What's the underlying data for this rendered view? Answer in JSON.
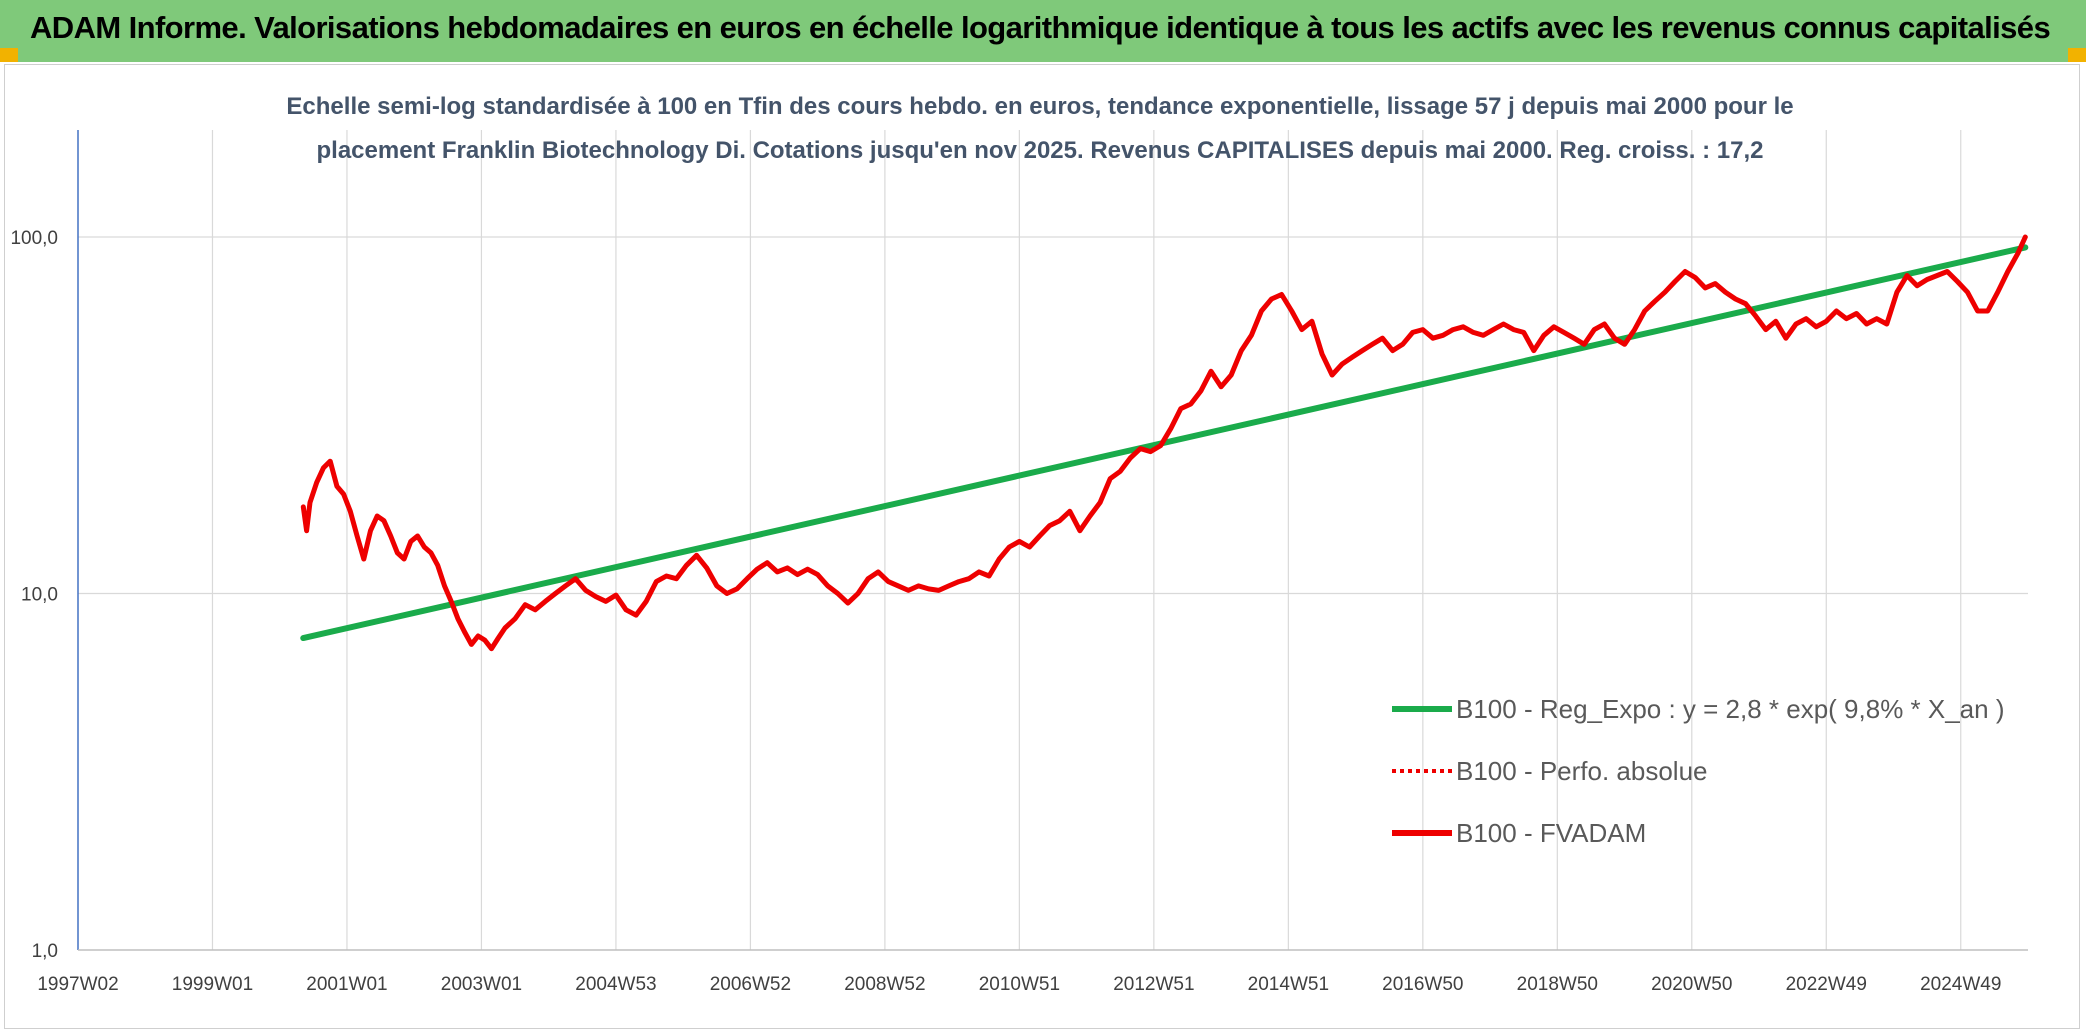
{
  "header": {
    "title": "ADAM Informe. Valorisations hebdomadaires en euros en échelle logarithmique identique à tous les actifs avec les revenus connus capitalisés"
  },
  "colors": {
    "banner": "#7fc97a",
    "regression": "#1aab4b",
    "fvadam": "#ee0000",
    "perfo": "#ee0000",
    "grid": "#d9d9d9"
  },
  "chart_data": {
    "type": "line",
    "subtitle_lines": [
      "Echelle semi-log standardisée à 100 en Tfin des cours hebdo. en euros, tendance exponentielle, lissage 57 j depuis mai 2000 pour le",
      "placement Franklin Biotechnology Di. Cotations jusqu'en nov 2025. Revenus CAPITALISES depuis mai 2000. Reg. croiss. : 17,2"
    ],
    "y_scale": "log",
    "ylim": [
      1,
      100
    ],
    "y_ticks": [
      "100,0",
      "10,0",
      "1,0"
    ],
    "x_range": [
      1997.0,
      2026.0
    ],
    "x_ticks": [
      {
        "label": "1997W02",
        "t": 1997.0
      },
      {
        "label": "1999W01",
        "t": 1999.0
      },
      {
        "label": "2001W01",
        "t": 2001.0
      },
      {
        "label": "2003W01",
        "t": 2003.0
      },
      {
        "label": "2004W53",
        "t": 2005.0
      },
      {
        "label": "2006W52",
        "t": 2007.0
      },
      {
        "label": "2008W52",
        "t": 2009.0
      },
      {
        "label": "2010W51",
        "t": 2011.0
      },
      {
        "label": "2012W51",
        "t": 2013.0
      },
      {
        "label": "2014W51",
        "t": 2015.0
      },
      {
        "label": "2016W50",
        "t": 2017.0
      },
      {
        "label": "2018W50",
        "t": 2019.0
      },
      {
        "label": "2020W50",
        "t": 2021.0
      },
      {
        "label": "2022W49",
        "t": 2023.0
      },
      {
        "label": "2024W49",
        "t": 2025.0
      }
    ],
    "legend_position": "right-center",
    "series": [
      {
        "name": "B100 - Reg_Expo : y = 2,8 * exp( 9,8% *  X_an )",
        "style": "solid-green",
        "x": [
          2000.35,
          2025.96
        ],
        "y": [
          7.5,
          93.5
        ]
      },
      {
        "name": "B100 - Perfo. absolue",
        "style": "dotted-red",
        "x": [],
        "y": []
      },
      {
        "name": "B100 - FVADAM",
        "style": "solid-red",
        "x": [
          2000.35,
          2000.4,
          2000.45,
          2000.55,
          2000.65,
          2000.75,
          2000.85,
          2000.95,
          2001.05,
          2001.15,
          2001.25,
          2001.35,
          2001.45,
          2001.55,
          2001.65,
          2001.75,
          2001.85,
          2001.95,
          2002.05,
          2002.15,
          2002.25,
          2002.35,
          2002.45,
          2002.55,
          2002.65,
          2002.75,
          2002.85,
          2002.95,
          2003.05,
          2003.15,
          2003.25,
          2003.35,
          2003.5,
          2003.65,
          2003.8,
          2003.95,
          2004.1,
          2004.25,
          2004.4,
          2004.55,
          2004.7,
          2004.85,
          2005.0,
          2005.15,
          2005.3,
          2005.45,
          2005.6,
          2005.75,
          2005.9,
          2006.05,
          2006.2,
          2006.35,
          2006.5,
          2006.65,
          2006.8,
          2006.95,
          2007.1,
          2007.25,
          2007.4,
          2007.55,
          2007.7,
          2007.85,
          2008.0,
          2008.15,
          2008.3,
          2008.45,
          2008.6,
          2008.75,
          2008.9,
          2009.05,
          2009.2,
          2009.35,
          2009.5,
          2009.65,
          2009.8,
          2009.95,
          2010.1,
          2010.25,
          2010.4,
          2010.55,
          2010.7,
          2010.85,
          2011.0,
          2011.15,
          2011.3,
          2011.45,
          2011.6,
          2011.75,
          2011.9,
          2012.05,
          2012.2,
          2012.35,
          2012.5,
          2012.65,
          2012.8,
          2012.95,
          2013.1,
          2013.25,
          2013.4,
          2013.55,
          2013.7,
          2013.85,
          2014.0,
          2014.15,
          2014.3,
          2014.45,
          2014.6,
          2014.75,
          2014.9,
          2015.05,
          2015.2,
          2015.35,
          2015.5,
          2015.65,
          2015.8,
          2015.95,
          2016.1,
          2016.25,
          2016.4,
          2016.55,
          2016.7,
          2016.85,
          2017.0,
          2017.15,
          2017.3,
          2017.45,
          2017.6,
          2017.75,
          2017.9,
          2018.05,
          2018.2,
          2018.35,
          2018.5,
          2018.65,
          2018.8,
          2018.95,
          2019.1,
          2019.25,
          2019.4,
          2019.55,
          2019.7,
          2019.85,
          2020.0,
          2020.15,
          2020.3,
          2020.45,
          2020.6,
          2020.75,
          2020.9,
          2021.05,
          2021.2,
          2021.35,
          2021.5,
          2021.65,
          2021.8,
          2021.95,
          2022.1,
          2022.25,
          2022.4,
          2022.55,
          2022.7,
          2022.85,
          2023.0,
          2023.15,
          2023.3,
          2023.45,
          2023.6,
          2023.75,
          2023.9,
          2024.05,
          2024.2,
          2024.35,
          2024.5,
          2024.65,
          2024.8,
          2024.95,
          2025.1,
          2025.25,
          2025.4,
          2025.55,
          2025.7,
          2025.85,
          2025.96
        ],
        "y": [
          17.5,
          15.0,
          18.0,
          20.5,
          22.5,
          23.5,
          20.0,
          19.0,
          17.0,
          14.5,
          12.5,
          15.0,
          16.5,
          16.0,
          14.5,
          13.0,
          12.5,
          14.0,
          14.5,
          13.5,
          13.0,
          12.0,
          10.5,
          9.5,
          8.5,
          7.8,
          7.2,
          7.6,
          7.4,
          7.0,
          7.5,
          8.0,
          8.5,
          9.3,
          9.0,
          9.5,
          10.0,
          10.5,
          11.0,
          10.2,
          9.8,
          9.5,
          9.9,
          9.0,
          8.7,
          9.5,
          10.8,
          11.2,
          11.0,
          12.0,
          12.8,
          11.8,
          10.5,
          10.0,
          10.3,
          11.0,
          11.7,
          12.2,
          11.5,
          11.8,
          11.3,
          11.7,
          11.3,
          10.5,
          10.0,
          9.4,
          10.0,
          11.0,
          11.5,
          10.8,
          10.5,
          10.2,
          10.5,
          10.3,
          10.2,
          10.5,
          10.8,
          11.0,
          11.5,
          11.2,
          12.5,
          13.5,
          14.0,
          13.5,
          14.5,
          15.5,
          16.0,
          17.0,
          15.0,
          16.5,
          18.0,
          21.0,
          22.0,
          24.0,
          25.5,
          25.0,
          26.0,
          29.0,
          33.0,
          34.0,
          37.0,
          42.0,
          38.0,
          41.0,
          48.0,
          53.0,
          62.0,
          67.0,
          69.0,
          62.0,
          55.0,
          58.0,
          47.0,
          41.0,
          44.0,
          46.0,
          48.0,
          50.0,
          52.0,
          48.0,
          50.0,
          54.0,
          55.0,
          52.0,
          53.0,
          55.0,
          56.0,
          54.0,
          53.0,
          55.0,
          57.0,
          55.0,
          54.0,
          48.0,
          53.0,
          56.0,
          54.0,
          52.0,
          50.0,
          55.0,
          57.0,
          52.0,
          50.0,
          55.0,
          62.0,
          66.0,
          70.0,
          75.0,
          80.0,
          77.0,
          72.0,
          74.0,
          70.0,
          67.0,
          65.0,
          60.0,
          55.0,
          58.0,
          52.0,
          57.0,
          59.0,
          56.0,
          58.0,
          62.0,
          59.0,
          61.0,
          57.0,
          59.0,
          57.0,
          70.0,
          78.0,
          73.0,
          76.0,
          78.0,
          80.0,
          75.0,
          70.0,
          62.0,
          62.0,
          70.0,
          80.0,
          90.0,
          100.0
        ]
      }
    ]
  }
}
